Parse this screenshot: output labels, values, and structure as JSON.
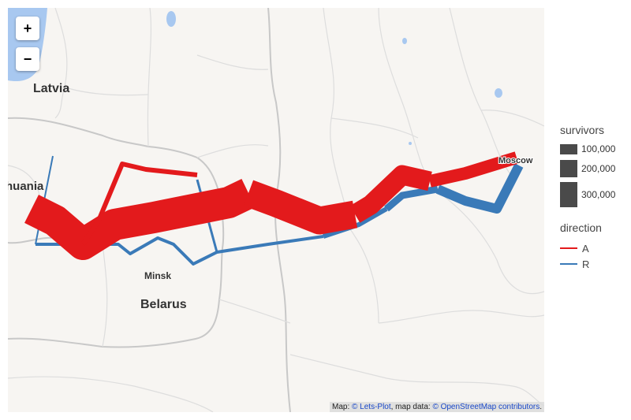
{
  "zoom": {
    "in_label": "+",
    "out_label": "−"
  },
  "places": {
    "latvia": "Latvia",
    "lithuania": "thuania",
    "minsk": "Minsk",
    "belarus": "Belarus",
    "moscow": "Moscow"
  },
  "attribution": {
    "prefix": "Map: ",
    "letsplot": "© Lets-Plot",
    "mid": ", map data: ",
    "osm": "© OpenStreetMap contributors",
    "suffix": "."
  },
  "legend": {
    "size_title": "survivors",
    "sizes": [
      {
        "label": "100,000",
        "value": 100000
      },
      {
        "label": "200,000",
        "value": 200000
      },
      {
        "label": "300,000",
        "value": 300000
      }
    ],
    "dir_title": "direction",
    "directions": [
      {
        "label": "A",
        "color": "#e31a1c"
      },
      {
        "label": "R",
        "color": "#3a7ab8"
      }
    ]
  }
}
